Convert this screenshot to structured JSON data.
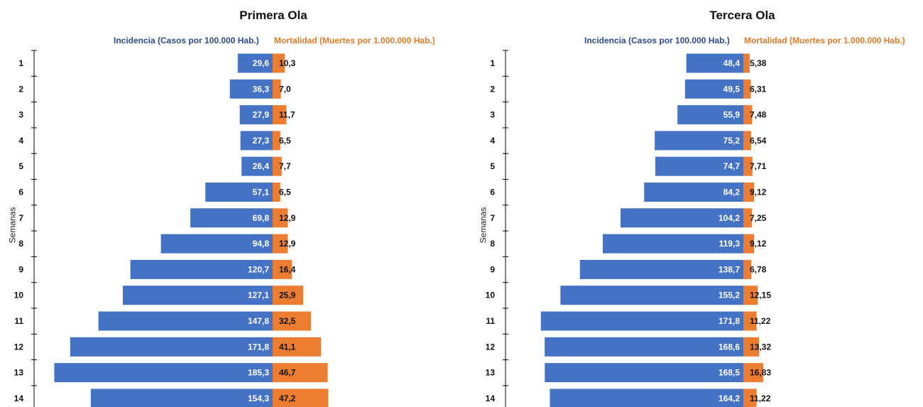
{
  "colors": {
    "incidence": "#4472c4",
    "mortality": "#ed7d31",
    "incidence_header": "#2e4a8f",
    "mortality_header": "#e07b2a"
  },
  "chart_data": [
    {
      "type": "bar",
      "orientation": "horizontal-diverging",
      "title": "Primera Ola",
      "ylabel": "Semanas",
      "categories": [
        "1",
        "2",
        "3",
        "4",
        "5",
        "6",
        "7",
        "8",
        "9",
        "10",
        "11",
        "12",
        "13",
        "14"
      ],
      "series": [
        {
          "name": "Incidencia (Casos por 100.000 Hab.)",
          "direction": "left",
          "values": [
            29.6,
            36.3,
            27.9,
            27.3,
            26.4,
            57.1,
            69.8,
            94.8,
            120.7,
            127.1,
            147.8,
            171.8,
            185.3,
            154.3
          ],
          "labels": [
            "29,6",
            "36,3",
            "27,9",
            "27,3",
            "26,4",
            "57,1",
            "69,8",
            "94,8",
            "120,7",
            "127,1",
            "147,8",
            "171,8",
            "185,3",
            "154,3"
          ]
        },
        {
          "name": "Mortalidad (Muertes por 1.000.000 Hab.)",
          "direction": "right",
          "values": [
            10.3,
            7.0,
            11.7,
            6.5,
            7.7,
            6.5,
            12.9,
            12.9,
            16.4,
            25.9,
            32.5,
            41.1,
            46.7,
            47.2
          ],
          "labels": [
            "10,3",
            "7,0",
            "11,7",
            "6,5",
            "7,7",
            "6,5",
            "12,9",
            "12,9",
            "16,4",
            "25,9",
            "32,5",
            "41,1",
            "46,7",
            "47,2"
          ]
        }
      ]
    },
    {
      "type": "bar",
      "orientation": "horizontal-diverging",
      "title": "Tercera Ola",
      "ylabel": "Semanas",
      "categories": [
        "1",
        "2",
        "3",
        "4",
        "5",
        "6",
        "7",
        "8",
        "9",
        "10",
        "11",
        "12",
        "13",
        "14"
      ],
      "series": [
        {
          "name": "Incidencia (Casos por 100.000 Hab.)",
          "direction": "left",
          "values": [
            48.4,
            49.5,
            55.9,
            75.2,
            74.7,
            84.2,
            104.2,
            119.3,
            138.7,
            155.2,
            171.8,
            168.6,
            168.5,
            164.2
          ],
          "labels": [
            "48,4",
            "49,5",
            "55,9",
            "75,2",
            "74,7",
            "84,2",
            "104,2",
            "119,3",
            "138,7",
            "155,2",
            "171,8",
            "168,6",
            "168,5",
            "164,2"
          ]
        },
        {
          "name": "Mortalidad (Muertes por 1.000.000 Hab.)",
          "direction": "right",
          "values": [
            5.38,
            6.31,
            7.48,
            6.54,
            7.71,
            9.12,
            7.25,
            9.12,
            6.78,
            12.15,
            11.22,
            13.32,
            16.83,
            11.22
          ],
          "labels": [
            "5,38",
            "6,31",
            "7,48",
            "6,54",
            "7,71",
            "9,12",
            "7,25",
            "9,12",
            "6,78",
            "12,15",
            "11,22",
            "13,32",
            "16,83",
            "11,22"
          ]
        }
      ]
    }
  ]
}
